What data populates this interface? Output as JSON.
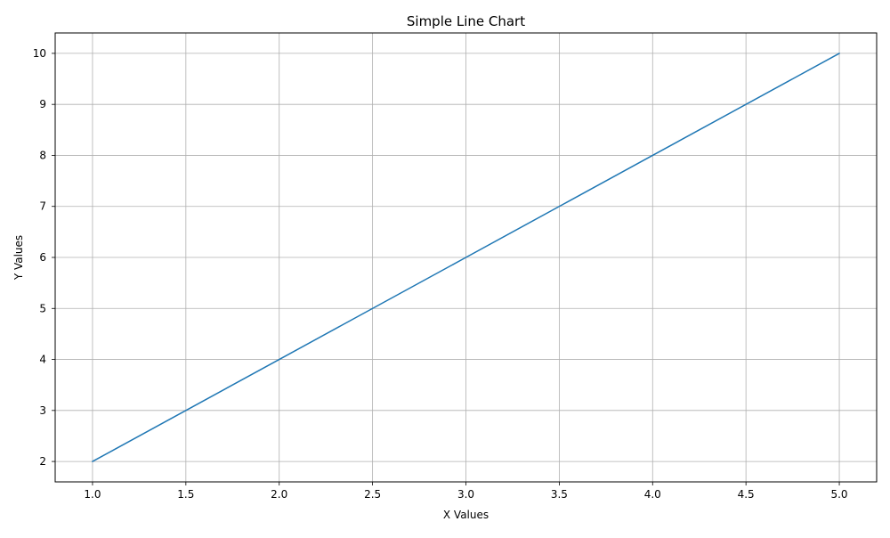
{
  "chart_data": {
    "type": "line",
    "title": "Simple Line Chart",
    "xlabel": "X Values",
    "ylabel": "Y Values",
    "x": [
      1,
      2,
      3,
      4,
      5
    ],
    "series": [
      {
        "values": [
          2,
          4,
          6,
          8,
          10
        ],
        "color": "#1f77b4"
      }
    ],
    "xlim": [
      0.8,
      5.2
    ],
    "ylim": [
      1.6,
      10.4
    ],
    "xticks": [
      "1.0",
      "1.5",
      "2.0",
      "2.5",
      "3.0",
      "3.5",
      "4.0",
      "4.5",
      "5.0"
    ],
    "yticks": [
      "2",
      "3",
      "4",
      "5",
      "6",
      "7",
      "8",
      "9",
      "10"
    ],
    "grid": true,
    "grid_color": "#b0b0b0",
    "axes_color": "#000000"
  }
}
